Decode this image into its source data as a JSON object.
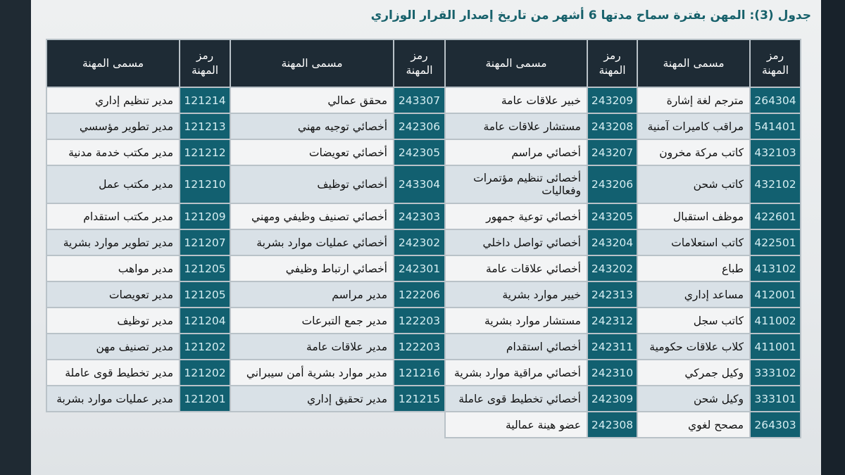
{
  "title": "جدول (3): المهن بفترة سماح مدتها 6 أشهر من تاريخ إصدار القرار الوزاري",
  "headers": {
    "code": "رمز المهنة",
    "name": "مسمى المهنة"
  },
  "colors": {
    "header_bg": "#1e2b35",
    "code_bg": "#126070",
    "title": "#17616b"
  },
  "rows": [
    [
      {
        "code": "264304",
        "name": "مترجم لغة إشارة"
      },
      {
        "code": "243209",
        "name": "خبير علاقات عامة"
      },
      {
        "code": "243307",
        "name": "محقق عمالي"
      },
      {
        "code": "121214",
        "name": "مدير تنظيم إداري"
      }
    ],
    [
      {
        "code": "541401",
        "name": "مراقب كاميرات آمنية"
      },
      {
        "code": "243208",
        "name": "مستشار علاقات عامة"
      },
      {
        "code": "242306",
        "name": "أخصائي توجيه مهني"
      },
      {
        "code": "121213",
        "name": "مدير تطوير مؤسسي"
      }
    ],
    [
      {
        "code": "432103",
        "name": "كاتب مركة مخرون"
      },
      {
        "code": "243207",
        "name": "أخصائي مراسم"
      },
      {
        "code": "242305",
        "name": "أخصائي تعويضات"
      },
      {
        "code": "121212",
        "name": "مدير مكتب خدمة مدنية"
      }
    ],
    [
      {
        "code": "432102",
        "name": "كاتب شحن"
      },
      {
        "code": "243206",
        "name": "أخصائى تنظيم مؤتمرات وفعاليات"
      },
      {
        "code": "243304",
        "name": "أخصائي توظيف"
      },
      {
        "code": "121210",
        "name": "مدير مكتب عمل"
      }
    ],
    [
      {
        "code": "422601",
        "name": "موظف استقبال"
      },
      {
        "code": "243205",
        "name": "أخصائي توعية جمهور"
      },
      {
        "code": "242303",
        "name": "أخصائي تصنيف وظيفي ومهني"
      },
      {
        "code": "121209",
        "name": "مدير مكتب استقدام"
      }
    ],
    [
      {
        "code": "422501",
        "name": "كاتب استعلامات"
      },
      {
        "code": "243204",
        "name": "أخصائي تواصل داخلي"
      },
      {
        "code": "242302",
        "name": "أخصائي عمليات موارد بشربة"
      },
      {
        "code": "121207",
        "name": "مدير تطوير موارد بشرية"
      }
    ],
    [
      {
        "code": "413102",
        "name": "طباع"
      },
      {
        "code": "243202",
        "name": "أخصائي علاقات عامة"
      },
      {
        "code": "242301",
        "name": "أخصائي ارتباط وظيفي"
      },
      {
        "code": "121205",
        "name": "مدير مواهب"
      }
    ],
    [
      {
        "code": "412001",
        "name": "مساعد إداري"
      },
      {
        "code": "242313",
        "name": "خيير موارد بشرية"
      },
      {
        "code": "122206",
        "name": "مدير مراسم"
      },
      {
        "code": "121205",
        "name": "مدير تعويصات"
      }
    ],
    [
      {
        "code": "411002",
        "name": "كاتب سجل"
      },
      {
        "code": "242312",
        "name": "مستشار موارد بشرية"
      },
      {
        "code": "122203",
        "name": "مدير جمع التبرعات"
      },
      {
        "code": "121204",
        "name": "مدير توظيف"
      }
    ],
    [
      {
        "code": "411001",
        "name": "كلاب علاقات حكومية"
      },
      {
        "code": "242311",
        "name": "أخصائي استقدام"
      },
      {
        "code": "122203",
        "name": "مدير علاقات عامة"
      },
      {
        "code": "121202",
        "name": "مدير تصنيف مهن"
      }
    ],
    [
      {
        "code": "333102",
        "name": "وكيل جمركي"
      },
      {
        "code": "242310",
        "name": "أخصائي مراقية موارد بشرية"
      },
      {
        "code": "121216",
        "name": "مدير موارد بشرية أمن سيبراني"
      },
      {
        "code": "121202",
        "name": "مدير تخطيط قوى عاملة"
      }
    ],
    [
      {
        "code": "333101",
        "name": "وكيل شحن"
      },
      {
        "code": "242309",
        "name": "أخصائي تخطيط قوى عاملة"
      },
      {
        "code": "121215",
        "name": "مدير تحقيق إداري"
      },
      {
        "code": "121201",
        "name": "مدير عمليات موارد بشربة"
      }
    ],
    [
      {
        "code": "264303",
        "name": "مصحح لغوي"
      },
      {
        "code": "242308",
        "name": "عضو هينة عمالية"
      }
    ]
  ]
}
